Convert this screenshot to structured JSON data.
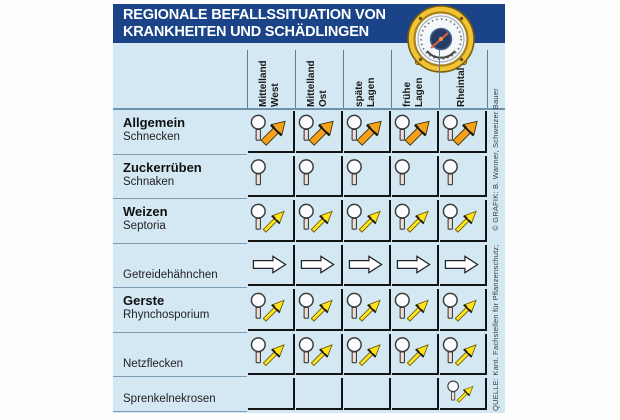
{
  "title": {
    "line1": "REGIONALE BEFALLSSITUATION VON",
    "line2": "KRANKHEITEN UND SCHÄDLINGEN"
  },
  "credit": "QUELLE: Kant. Fachstellen für Pflanzenschutz;      © GRAFIK: B. Wanner, Schweizer Bauer",
  "chart_data": {
    "type": "table",
    "title": "Regionale Befallssituation von Krankheiten und Schädlingen",
    "columns": [
      "Mittelland West",
      "Mittelland Ost",
      "späte Lagen",
      "frühe Lagen",
      "Rheintal"
    ],
    "column_label_lines": [
      [
        "Mittelland",
        "West"
      ],
      [
        "Mittelland",
        "Ost"
      ],
      [
        "späte",
        "Lagen"
      ],
      [
        "frühe",
        "Lagen"
      ],
      [
        "Rheintal"
      ]
    ],
    "rows": [
      {
        "group": "Allgemein",
        "pest": "Schnecken",
        "trend": [
          "up-strong",
          "up-strong",
          "up-strong",
          "up-strong",
          "up-strong"
        ]
      },
      {
        "group": "Zuckerrüben",
        "pest": "Schnaken",
        "trend": [
          "observe",
          "observe",
          "observe",
          "observe",
          "observe"
        ]
      },
      {
        "group": "Weizen",
        "pest": "Septoria",
        "trend": [
          "up-moderate",
          "up-moderate",
          "up-moderate",
          "up-moderate",
          "up-moderate"
        ]
      },
      {
        "group": "",
        "pest": "Getreidehähnchen",
        "trend": [
          "stable",
          "stable",
          "stable",
          "stable",
          "stable"
        ]
      },
      {
        "group": "Gerste",
        "pest": "Rhynchosporium",
        "trend": [
          "up-moderate",
          "up-moderate",
          "up-moderate",
          "up-moderate",
          "up-moderate"
        ]
      },
      {
        "group": "",
        "pest": "Netzflecken",
        "trend": [
          "up-moderate",
          "up-moderate",
          "up-moderate",
          "up-moderate",
          "up-moderate"
        ]
      },
      {
        "group": "",
        "pest": "Sprenkelnekrosen",
        "trend": [
          "none",
          "none",
          "none",
          "none",
          "up-moderate"
        ]
      }
    ],
    "legend": {
      "up-strong": "magnifier with thick orange arrow pointing up-right (strong increase)",
      "up-moderate": "magnifier with thin yellow arrow pointing up-right (moderate increase)",
      "observe": "magnifier only (observe)",
      "stable": "white arrow pointing right (stable)",
      "none": "empty cell"
    }
  },
  "icons": {
    "barometer": "barometer-icon",
    "magnifier": "magnifier-icon",
    "up_strong": "trend-up-strong-icon",
    "up_moderate": "trend-up-moderate-icon",
    "stable": "trend-stable-icon"
  },
  "colors": {
    "banner": "#1a4487",
    "table_bg": "#d4e8f4",
    "arrow_strong": "#f6a019",
    "arrow_moderate": "#ffe41c",
    "arrow_stable": "#ffffff",
    "cell_border": "#141414",
    "separator": "#7d9db5"
  }
}
